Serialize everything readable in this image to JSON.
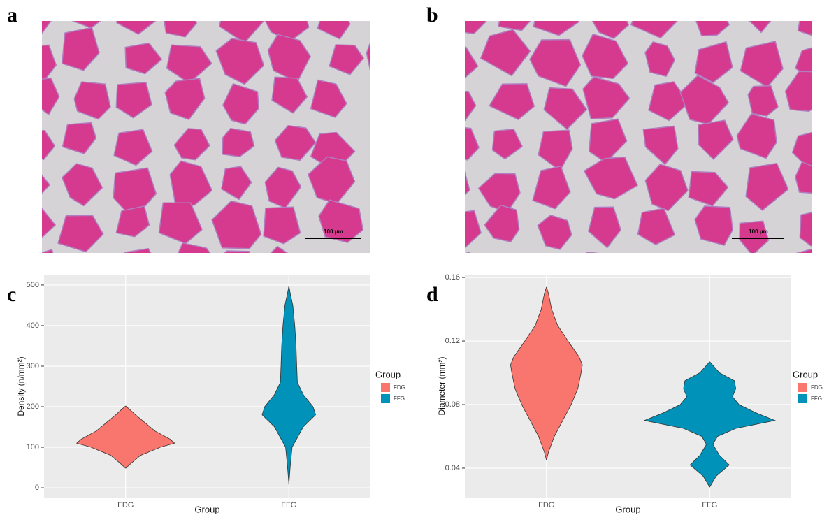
{
  "images": [
    {
      "label": "a",
      "scale_bar": "100 μm"
    },
    {
      "label": "b",
      "scale_bar": "100 μm"
    }
  ],
  "chart_data": [
    {
      "type": "violin",
      "panel": "c",
      "x_label": "Group",
      "y_label": "Density (n/mm²)",
      "legend_title": "Group",
      "categories": [
        "FDG",
        "FFG"
      ],
      "series": [
        {
          "name": "FDG",
          "color": "#F8766D",
          "y": [
            48,
            60,
            80,
            100,
            110,
            120,
            140,
            160,
            180,
            195,
            202
          ],
          "width": [
            0,
            0.08,
            0.23,
            0.53,
            0.75,
            0.68,
            0.45,
            0.3,
            0.15,
            0.05,
            0
          ]
        },
        {
          "name": "FFG",
          "color": "#0092B8",
          "y": [
            8,
            50,
            100,
            150,
            180,
            200,
            230,
            260,
            300,
            350,
            400,
            450,
            480,
            498
          ],
          "width": [
            0,
            0.02,
            0.05,
            0.22,
            0.41,
            0.37,
            0.22,
            0.13,
            0.12,
            0.11,
            0.09,
            0.06,
            0.02,
            0
          ]
        }
      ],
      "ylim": [
        -24,
        524
      ],
      "yticks": [
        0,
        100,
        200,
        300,
        400,
        500
      ],
      "grid": true
    },
    {
      "type": "violin",
      "panel": "d",
      "x_label": "Group",
      "y_label": "Diameter  (mm²)",
      "legend_title": "Group",
      "categories": [
        "FDG",
        "FFG"
      ],
      "series": [
        {
          "name": "FDG",
          "color": "#F8766D",
          "y": [
            0.045,
            0.05,
            0.06,
            0.07,
            0.08,
            0.09,
            0.1,
            0.105,
            0.11,
            0.12,
            0.13,
            0.14,
            0.15,
            0.154
          ],
          "width": [
            0,
            0.03,
            0.12,
            0.25,
            0.38,
            0.48,
            0.53,
            0.55,
            0.5,
            0.33,
            0.17,
            0.08,
            0.03,
            0
          ]
        },
        {
          "name": "FFG",
          "color": "#0092B8",
          "y": [
            0.028,
            0.035,
            0.042,
            0.048,
            0.055,
            0.06,
            0.065,
            0.07,
            0.075,
            0.08,
            0.085,
            0.09,
            0.095,
            0.1,
            0.107
          ],
          "width": [
            0,
            0.1,
            0.3,
            0.15,
            0.05,
            0.12,
            0.4,
            1.0,
            0.7,
            0.45,
            0.35,
            0.4,
            0.38,
            0.15,
            0
          ]
        }
      ],
      "ylim": [
        0.0215,
        0.1618
      ],
      "yticks": [
        0.04,
        0.08,
        0.12,
        0.16
      ],
      "grid": true
    }
  ]
}
